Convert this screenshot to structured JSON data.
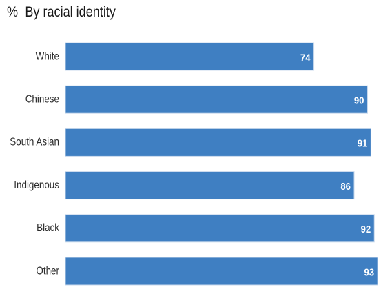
{
  "title_prefix": "%",
  "title": "By racial identity",
  "chart_data": {
    "type": "bar",
    "orientation": "horizontal",
    "title": "By racial identity",
    "unit": "%",
    "categories": [
      "White",
      "Chinese",
      "South Asian",
      "Indigenous",
      "Black",
      "Other"
    ],
    "values": [
      74,
      90,
      91,
      86,
      92,
      93
    ],
    "xlim": [
      0,
      94
    ],
    "grid": false,
    "legend": "none",
    "bar_color": "#3f7fc2",
    "bar_edge_color": "#c9d9ec",
    "label_color": "#ffffff"
  }
}
